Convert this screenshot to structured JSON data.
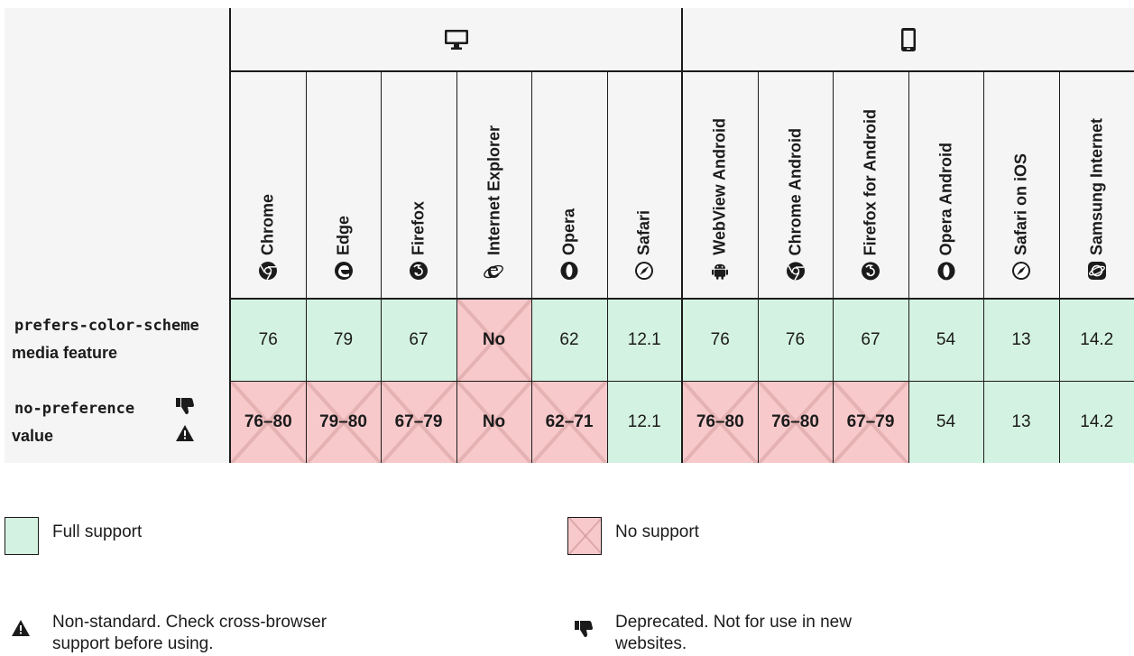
{
  "platforms": {
    "desktop": "desktop-platform-icon",
    "mobile": "mobile-platform-icon"
  },
  "browsers": [
    {
      "name": "Chrome",
      "icon": "chrome-icon"
    },
    {
      "name": "Edge",
      "icon": "edge-icon"
    },
    {
      "name": "Firefox",
      "icon": "firefox-icon"
    },
    {
      "name": "Internet Explorer",
      "icon": "internet-explorer-icon"
    },
    {
      "name": "Opera",
      "icon": "opera-icon"
    },
    {
      "name": "Safari",
      "icon": "safari-icon"
    },
    {
      "name": "WebView Android",
      "icon": "android-icon"
    },
    {
      "name": "Chrome Android",
      "icon": "chrome-icon"
    },
    {
      "name": "Firefox for Android",
      "icon": "firefox-icon"
    },
    {
      "name": "Opera Android",
      "icon": "opera-icon"
    },
    {
      "name": "Safari on iOS",
      "icon": "safari-icon"
    },
    {
      "name": "Samsung Internet",
      "icon": "samsung-internet-icon"
    }
  ],
  "rows": [
    {
      "feature_code": "prefers-color-scheme",
      "feature_desc": "media feature",
      "cells": [
        {
          "value": "76",
          "support": "yes"
        },
        {
          "value": "79",
          "support": "yes"
        },
        {
          "value": "67",
          "support": "yes"
        },
        {
          "value": "No",
          "support": "no"
        },
        {
          "value": "62",
          "support": "yes"
        },
        {
          "value": "12.1",
          "support": "yes"
        },
        {
          "value": "76",
          "support": "yes"
        },
        {
          "value": "76",
          "support": "yes"
        },
        {
          "value": "67",
          "support": "yes"
        },
        {
          "value": "54",
          "support": "yes"
        },
        {
          "value": "13",
          "support": "yes"
        },
        {
          "value": "14.2",
          "support": "yes"
        }
      ]
    },
    {
      "feature_code": "no-preference",
      "feature_desc": "value",
      "cells": [
        {
          "value": "76–80",
          "support": "no"
        },
        {
          "value": "79–80",
          "support": "no"
        },
        {
          "value": "67–79",
          "support": "no"
        },
        {
          "value": "No",
          "support": "no"
        },
        {
          "value": "62–71",
          "support": "no"
        },
        {
          "value": "12.1",
          "support": "yes"
        },
        {
          "value": "76–80",
          "support": "no"
        },
        {
          "value": "76–80",
          "support": "no"
        },
        {
          "value": "67–79",
          "support": "no"
        },
        {
          "value": "54",
          "support": "yes"
        },
        {
          "value": "13",
          "support": "yes"
        },
        {
          "value": "14.2",
          "support": "yes"
        }
      ]
    }
  ],
  "legend": {
    "full_support": "Full support",
    "no_support": "No support",
    "non_standard": "Non-standard. Check cross-browser support before using.",
    "deprecated": "Deprecated. Not for use in new websites."
  },
  "colors": {
    "yes": "#d4f2e1",
    "no": "#f8c9cb",
    "header_bg": "#f5f5f5",
    "border": "#1b1b1b"
  }
}
